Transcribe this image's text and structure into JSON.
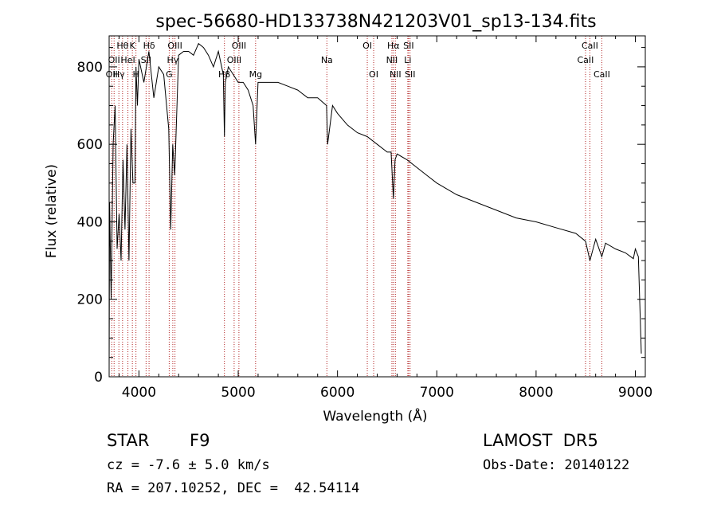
{
  "page": {
    "object_class": "STAR",
    "object_subclass": "F9",
    "survey": "LAMOST  DR5",
    "cz_text": "cz = -7.6 ± 5.0 km/s",
    "obs_date_text": "Obs-Date: 20140122",
    "radec_text": "RA = 207.10252, DEC =  42.54114"
  },
  "chart_data": {
    "type": "line",
    "title": "spec-56680-HD133738N421203V01_sp13-134.fits",
    "xlabel": "Wavelength (Å)",
    "ylabel": "Flux (relative)",
    "xlim": [
      3700,
      9100
    ],
    "ylim": [
      0,
      880
    ],
    "x_ticks": [
      4000,
      5000,
      6000,
      7000,
      8000,
      9000
    ],
    "y_ticks": [
      0,
      200,
      400,
      600,
      800
    ],
    "grid": false,
    "line_color": "#000000",
    "marker_color": "#b22222",
    "series": [
      {
        "x": [
          3700,
          3705,
          3720,
          3740,
          3760,
          3780,
          3800,
          3820,
          3840,
          3860,
          3880,
          3900,
          3920,
          3940,
          3960,
          3970,
          3985,
          4000,
          4050,
          4100,
          4150,
          4200,
          4250,
          4300,
          4320,
          4340,
          4360,
          4400,
          4450,
          4500,
          4550,
          4600,
          4650,
          4700,
          4750,
          4800,
          4850,
          4861,
          4870,
          4900,
          4950,
          5000,
          5050,
          5100,
          5150,
          5175,
          5200,
          5300,
          5400,
          5500,
          5600,
          5700,
          5800,
          5890,
          5900,
          5950,
          6000,
          6100,
          6200,
          6300,
          6400,
          6500,
          6540,
          6563,
          6580,
          6600,
          6700,
          6800,
          6900,
          7000,
          7200,
          7400,
          7600,
          7800,
          8000,
          8200,
          8400,
          8498,
          8542,
          8600,
          8662,
          8700,
          8800,
          8900,
          8980,
          9000,
          9030,
          9060
        ],
        "y": [
          30,
          450,
          200,
          600,
          700,
          330,
          420,
          300,
          560,
          380,
          600,
          300,
          640,
          500,
          500,
          800,
          700,
          820,
          760,
          840,
          720,
          800,
          780,
          640,
          380,
          600,
          520,
          830,
          840,
          840,
          830,
          860,
          850,
          830,
          800,
          840,
          780,
          620,
          760,
          800,
          780,
          760,
          760,
          740,
          700,
          600,
          760,
          760,
          760,
          750,
          740,
          720,
          720,
          700,
          600,
          700,
          680,
          650,
          630,
          620,
          600,
          580,
          580,
          460,
          560,
          575,
          560,
          540,
          520,
          500,
          470,
          450,
          430,
          410,
          400,
          385,
          370,
          350,
          300,
          355,
          310,
          345,
          330,
          320,
          305,
          330,
          310,
          60
        ]
      }
    ],
    "line_markers": [
      {
        "wave": 3726,
        "label": "OII",
        "row": 2
      },
      {
        "wave": 3750,
        "label": "OII",
        "row": 1
      },
      {
        "wave": 3798,
        "label": "Hγ",
        "row": 2
      },
      {
        "wave": 3835,
        "label": "Hθ",
        "row": 0
      },
      {
        "wave": 3889,
        "label": "HeI",
        "row": 1
      },
      {
        "wave": 3934,
        "label": "K",
        "row": 0
      },
      {
        "wave": 3970,
        "label": "H",
        "row": 2
      },
      {
        "wave": 4072,
        "label": "SII",
        "row": 1
      },
      {
        "wave": 4102,
        "label": "Hδ",
        "row": 0
      },
      {
        "wave": 4305,
        "label": "G",
        "row": 2
      },
      {
        "wave": 4341,
        "label": "Hγ",
        "row": 1
      },
      {
        "wave": 4363,
        "label": "OIII",
        "row": 0
      },
      {
        "wave": 4861,
        "label": "Hβ",
        "row": 2
      },
      {
        "wave": 4959,
        "label": "OIII",
        "row": 1
      },
      {
        "wave": 5007,
        "label": "OIII",
        "row": 0
      },
      {
        "wave": 5175,
        "label": "Mg",
        "row": 2
      },
      {
        "wave": 5893,
        "label": "Na",
        "row": 1
      },
      {
        "wave": 6300,
        "label": "OI",
        "row": 0
      },
      {
        "wave": 6364,
        "label": "OI",
        "row": 2
      },
      {
        "wave": 6548,
        "label": "NII",
        "row": 1
      },
      {
        "wave": 6563,
        "label": "Hα",
        "row": 0
      },
      {
        "wave": 6583,
        "label": "NII",
        "row": 2
      },
      {
        "wave": 6708,
        "label": "Li",
        "row": 1
      },
      {
        "wave": 6716,
        "label": "SII",
        "row": 0
      },
      {
        "wave": 6731,
        "label": "SII",
        "row": 2
      },
      {
        "wave": 8498,
        "label": "CaII",
        "row": 1
      },
      {
        "wave": 8542,
        "label": "CaII",
        "row": 0
      },
      {
        "wave": 8662,
        "label": "CaII",
        "row": 2
      }
    ]
  }
}
